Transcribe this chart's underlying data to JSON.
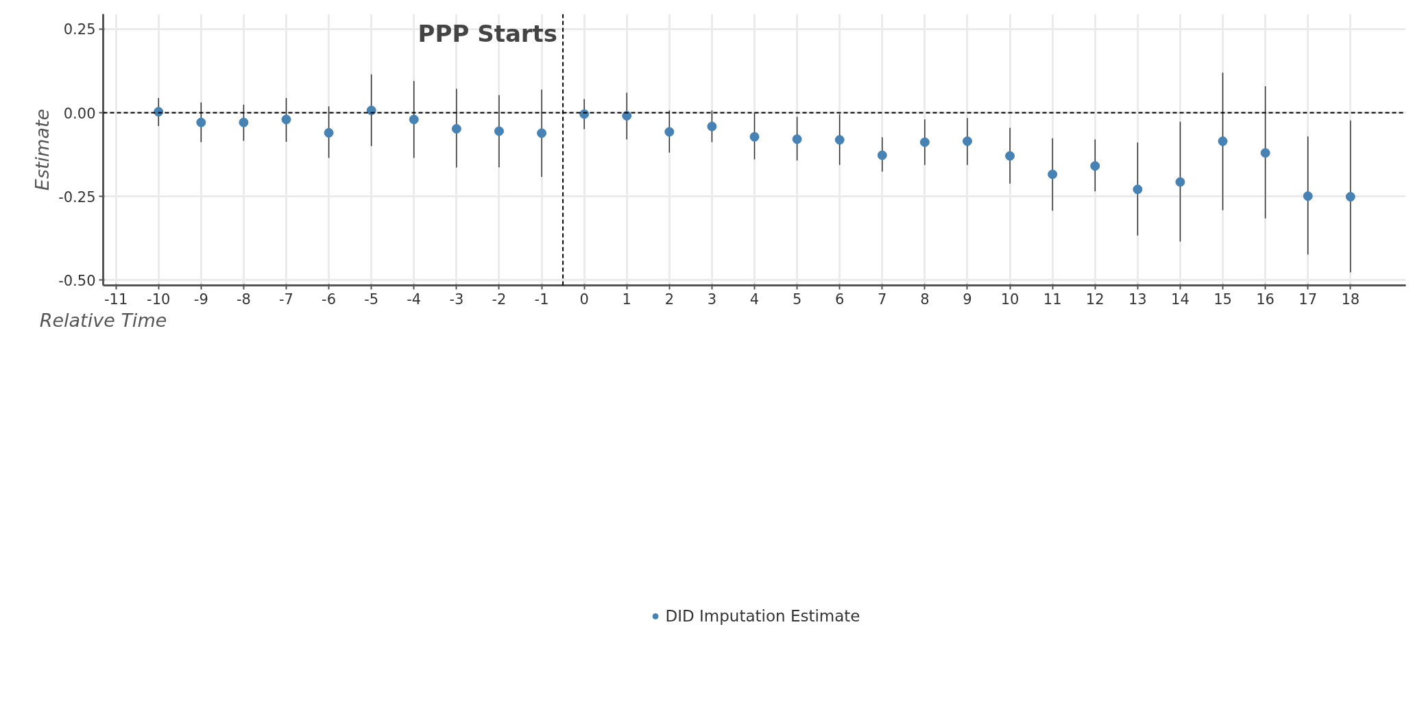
{
  "chart_data": {
    "type": "scatter",
    "xlabel": "Relative Time",
    "ylabel": "Estimate",
    "x": [
      -10,
      -9,
      -8,
      -7,
      -6,
      -5,
      -4,
      -3,
      -2,
      -1,
      0,
      1,
      2,
      3,
      4,
      5,
      6,
      7,
      8,
      9,
      10,
      11,
      12,
      13,
      14,
      15,
      16,
      17,
      18
    ],
    "series": [
      {
        "name": "DID Imputation Estimate",
        "color": "#4682b4",
        "values": [
          0.003,
          -0.029,
          -0.029,
          -0.02,
          -0.06,
          0.007,
          -0.02,
          -0.048,
          -0.055,
          -0.061,
          -0.004,
          -0.009,
          -0.057,
          -0.041,
          -0.072,
          -0.079,
          -0.081,
          -0.127,
          -0.088,
          -0.085,
          -0.129,
          -0.184,
          -0.159,
          -0.229,
          -0.207,
          -0.085,
          -0.12,
          -0.249,
          -0.251
        ],
        "errors": [
          [
            -0.04,
            0.044
          ],
          [
            -0.088,
            0.031
          ],
          [
            -0.084,
            0.024
          ],
          [
            -0.087,
            0.044
          ],
          [
            -0.135,
            0.019
          ],
          [
            -0.1,
            0.115
          ],
          [
            -0.135,
            0.095
          ],
          [
            -0.164,
            0.072
          ],
          [
            -0.163,
            0.053
          ],
          [
            -0.192,
            0.069
          ],
          [
            -0.049,
            0.041
          ],
          [
            -0.08,
            0.06
          ],
          [
            -0.119,
            0.007
          ],
          [
            -0.088,
            0.007
          ],
          [
            -0.139,
            0.0
          ],
          [
            -0.143,
            -0.012
          ],
          [
            -0.156,
            -0.004
          ],
          [
            -0.176,
            -0.073
          ],
          [
            -0.156,
            -0.02
          ],
          [
            -0.156,
            -0.016
          ],
          [
            -0.212,
            -0.045
          ],
          [
            -0.293,
            -0.076
          ],
          [
            -0.235,
            -0.08
          ],
          [
            -0.367,
            -0.089
          ],
          [
            -0.385,
            -0.027
          ],
          [
            -0.291,
            0.12
          ],
          [
            -0.316,
            0.079
          ],
          [
            -0.424,
            -0.071
          ],
          [
            -0.477,
            -0.023
          ]
        ]
      }
    ],
    "xlim": [
      -11.3,
      19.3
    ],
    "ylim": [
      -0.516,
      0.295
    ],
    "xticks": [
      -11,
      -10,
      -9,
      -8,
      -7,
      -6,
      -5,
      -4,
      -3,
      -2,
      -1,
      0,
      1,
      2,
      3,
      4,
      5,
      6,
      7,
      8,
      9,
      10,
      11,
      12,
      13,
      14,
      15,
      16,
      17,
      18
    ],
    "yticks": [
      {
        "value": 0.25,
        "label": "0.25"
      },
      {
        "value": 0,
        "label": "0.00"
      },
      {
        "value": -0.25,
        "label": "-0.25"
      },
      {
        "value": -0.5,
        "label": "-0.50"
      }
    ],
    "ref_lines": [
      {
        "axis": "y",
        "value": 0,
        "label": null,
        "line_style": "dashed"
      },
      {
        "axis": "x",
        "value": -0.5,
        "label": "PPP Starts",
        "line_style": "dashed"
      }
    ],
    "grid": true,
    "legend": "bottom",
    "marker": "circle"
  }
}
